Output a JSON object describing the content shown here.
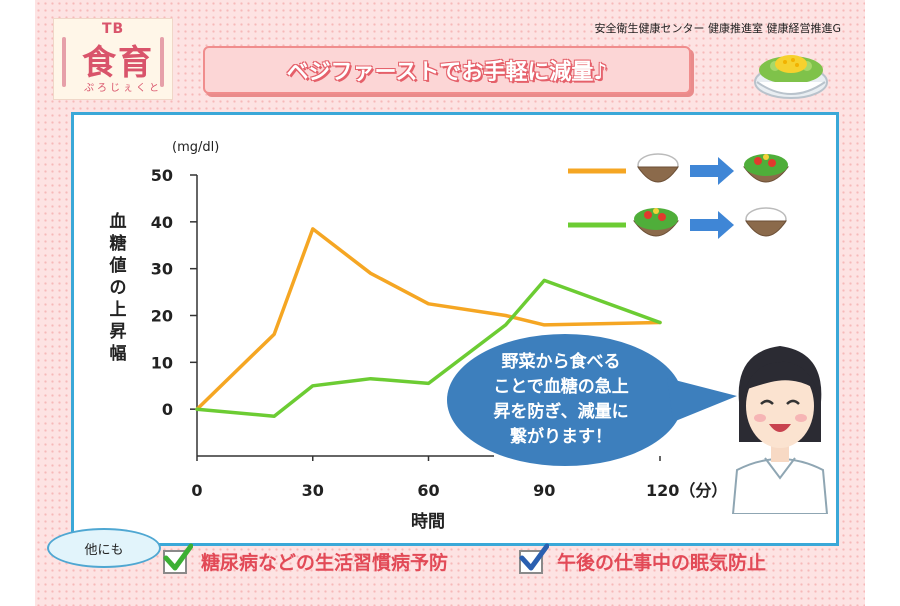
{
  "logo": {
    "tb": "TB",
    "kanji": "食育",
    "kana": "ぷろじぇくと"
  },
  "org": "安全衛生健康センター 健康推進室 健康経営推進G",
  "banner": "ベジファーストでお手軽に減量♪",
  "colors": {
    "orange": "#f5a623",
    "green": "#6ccc33",
    "blue_arrow": "#3f86d6",
    "bubble": "#3d7fbd",
    "red_text": "#e24a57"
  },
  "icons": [
    "salad-bowl-icon",
    "rice-bowl-icon",
    "right-arrow-icon",
    "woman-illustration",
    "check-icon"
  ],
  "chart_data": {
    "type": "line",
    "x": [
      0,
      20,
      30,
      45,
      60,
      80,
      90,
      120
    ],
    "series": [
      {
        "values": [
          0,
          16,
          38.5,
          29,
          22.5,
          20,
          18,
          18.5
        ],
        "color": "#f5a623"
      },
      {
        "values": [
          0,
          -1.5,
          5,
          6.5,
          5.5,
          18,
          27.5,
          18.5
        ],
        "color": "#6ccc33"
      }
    ],
    "x_ticks": [
      "0",
      "30",
      "60",
      "90",
      "120（分）"
    ],
    "x_tick_values": [
      0,
      30,
      60,
      90,
      120
    ],
    "y_ticks": [
      "50",
      "40",
      "30",
      "20",
      "10",
      "0"
    ],
    "y_tick_values": [
      50,
      40,
      30,
      20,
      10,
      0
    ],
    "xlabel": "時間",
    "ylabel": "血糖値の上昇幅",
    "unit": "(mg/dl)",
    "xlim": [
      0,
      120
    ],
    "ylim": [
      -10,
      50
    ],
    "grid": false,
    "legend": [
      {
        "series": 0,
        "description": "rice-bowl-icon → salad-bowl-icon"
      },
      {
        "series": 1,
        "description": "salad-bowl-icon → rice-bowl-icon"
      }
    ],
    "legend_position": "top-right"
  },
  "bubble_lines": [
    "野菜から食べる",
    "ことで血糖の急上",
    "昇を防ぎ、減量に",
    "繋がります！"
  ],
  "other_label": "他にも",
  "benefits": [
    {
      "text": "糖尿病などの生活習慣病予防",
      "check_color": "#3cb034"
    },
    {
      "text": "午後の仕事中の眠気防止",
      "check_color": "#2a5fb0"
    }
  ]
}
